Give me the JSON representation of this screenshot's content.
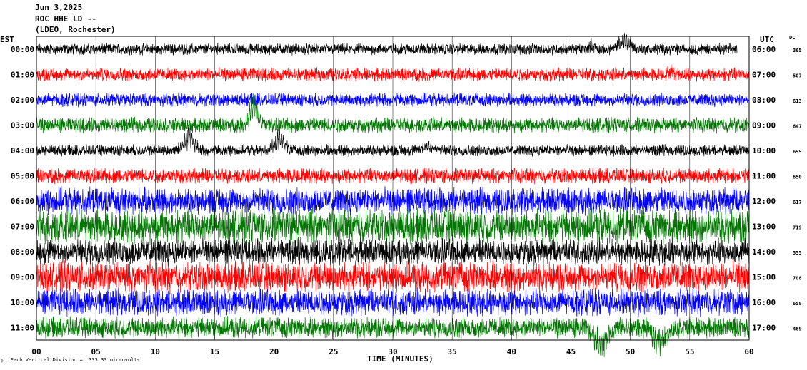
{
  "header": {
    "date": "Jun 3,2025",
    "station": "ROC HHE LD --",
    "network": "(LDEO, Rochester)"
  },
  "timezones": {
    "left": "EST",
    "right": "UTC",
    "dc_label": "DC"
  },
  "footer": {
    "scale_note": "µ  Each Vertical Division =  333.33 microvolts"
  },
  "chart_data": {
    "type": "line",
    "subtype": "helicorder",
    "xlabel": "TIME (MINUTES)",
    "xlim": [
      0,
      60
    ],
    "x_ticks": [
      "00",
      "05",
      "10",
      "15",
      "20",
      "25",
      "30",
      "35",
      "40",
      "45",
      "50",
      "55",
      "60"
    ],
    "grid": "vertical lines every 5 minutes",
    "trace_colors": [
      "#000000",
      "#ff0000",
      "#0000ff",
      "#007700"
    ],
    "rows": [
      {
        "est": "00:00",
        "utc": "06:00",
        "dc": "365",
        "color": "#000000",
        "noise": 6,
        "end_minute": 59,
        "events": [
          {
            "t": 46.8,
            "amp": 10,
            "w": 0.3
          },
          {
            "t": 49.5,
            "amp": 20,
            "w": 0.6
          }
        ]
      },
      {
        "est": "01:00",
        "utc": "07:00",
        "dc": "507",
        "color": "#ff0000",
        "noise": 7,
        "events": [
          {
            "t": 53.5,
            "amp": 6,
            "w": 0.4
          }
        ]
      },
      {
        "est": "02:00",
        "utc": "08:00",
        "dc": "613",
        "color": "#0000ff",
        "noise": 7,
        "events": []
      },
      {
        "est": "03:00",
        "utc": "09:00",
        "dc": "647",
        "color": "#007700",
        "noise": 8,
        "events": [
          {
            "t": 18.3,
            "amp": 40,
            "w": 0.5
          }
        ]
      },
      {
        "est": "04:00",
        "utc": "10:00",
        "dc": "699",
        "color": "#000000",
        "noise": 6,
        "events": [
          {
            "t": 12.8,
            "amp": 30,
            "w": 0.6
          },
          {
            "t": 20.5,
            "amp": 25,
            "w": 0.6
          },
          {
            "t": 33,
            "amp": 10,
            "w": 0.6
          }
        ]
      },
      {
        "est": "05:00",
        "utc": "11:00",
        "dc": "650",
        "color": "#ff0000",
        "noise": 8,
        "events": []
      },
      {
        "est": "06:00",
        "utc": "12:00",
        "dc": "617",
        "color": "#0000ff",
        "noise": 14,
        "events": []
      },
      {
        "est": "07:00",
        "utc": "13:00",
        "dc": "719",
        "color": "#007700",
        "noise": 18,
        "events": []
      },
      {
        "est": "08:00",
        "utc": "14:00",
        "dc": "555",
        "color": "#000000",
        "noise": 14,
        "events": []
      },
      {
        "est": "09:00",
        "utc": "15:00",
        "dc": "708",
        "color": "#ff0000",
        "noise": 16,
        "events": []
      },
      {
        "est": "10:00",
        "utc": "16:00",
        "dc": "658",
        "color": "#0000ff",
        "noise": 14,
        "events": []
      },
      {
        "est": "11:00",
        "utc": "17:00",
        "dc": "489",
        "color": "#007700",
        "noise": 11,
        "events": [
          {
            "t": 47.5,
            "amp": -35,
            "w": 0.8
          },
          {
            "t": 52.5,
            "amp": -30,
            "w": 0.8
          }
        ]
      }
    ]
  }
}
